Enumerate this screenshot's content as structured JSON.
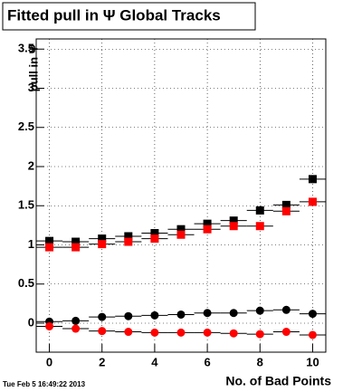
{
  "chart_data": {
    "type": "scatter",
    "title": "Fitted pull in  Ψ   Global Tracks",
    "x_label": "No. of Bad Points",
    "y_label": "pull in Ψ",
    "timestamp": "Tue Feb  5 16:49:22 2013",
    "x": [
      0,
      1,
      2,
      3,
      4,
      5,
      6,
      7,
      8,
      9,
      10
    ],
    "xerr": 0.5,
    "series": [
      {
        "color": "#000000",
        "marker": "square",
        "values": [
          1.05,
          1.04,
          1.08,
          1.11,
          1.15,
          1.2,
          1.27,
          1.31,
          1.44,
          1.51,
          1.84
        ]
      },
      {
        "color": "#ff0000",
        "marker": "square",
        "values": [
          0.97,
          0.97,
          1.01,
          1.04,
          1.08,
          1.13,
          1.2,
          1.24,
          1.24,
          1.43,
          1.55
        ]
      },
      {
        "color": "#000000",
        "marker": "circle",
        "values": [
          0.02,
          0.03,
          0.08,
          0.09,
          0.1,
          0.11,
          0.13,
          0.13,
          0.16,
          0.17,
          0.12
        ]
      },
      {
        "color": "#ff0000",
        "marker": "circle",
        "values": [
          -0.04,
          -0.07,
          -0.1,
          -0.11,
          -0.12,
          -0.12,
          -0.12,
          -0.13,
          -0.14,
          -0.11,
          -0.15
        ]
      }
    ],
    "xlim": [
      -0.5,
      10.5
    ],
    "xticks": [
      0,
      2,
      4,
      6,
      8,
      10
    ],
    "ylim": [
      -0.37,
      3.63
    ],
    "yticks": [
      0,
      0.5,
      1,
      1.5,
      2,
      2.5,
      3,
      3.5
    ],
    "grid": true
  }
}
